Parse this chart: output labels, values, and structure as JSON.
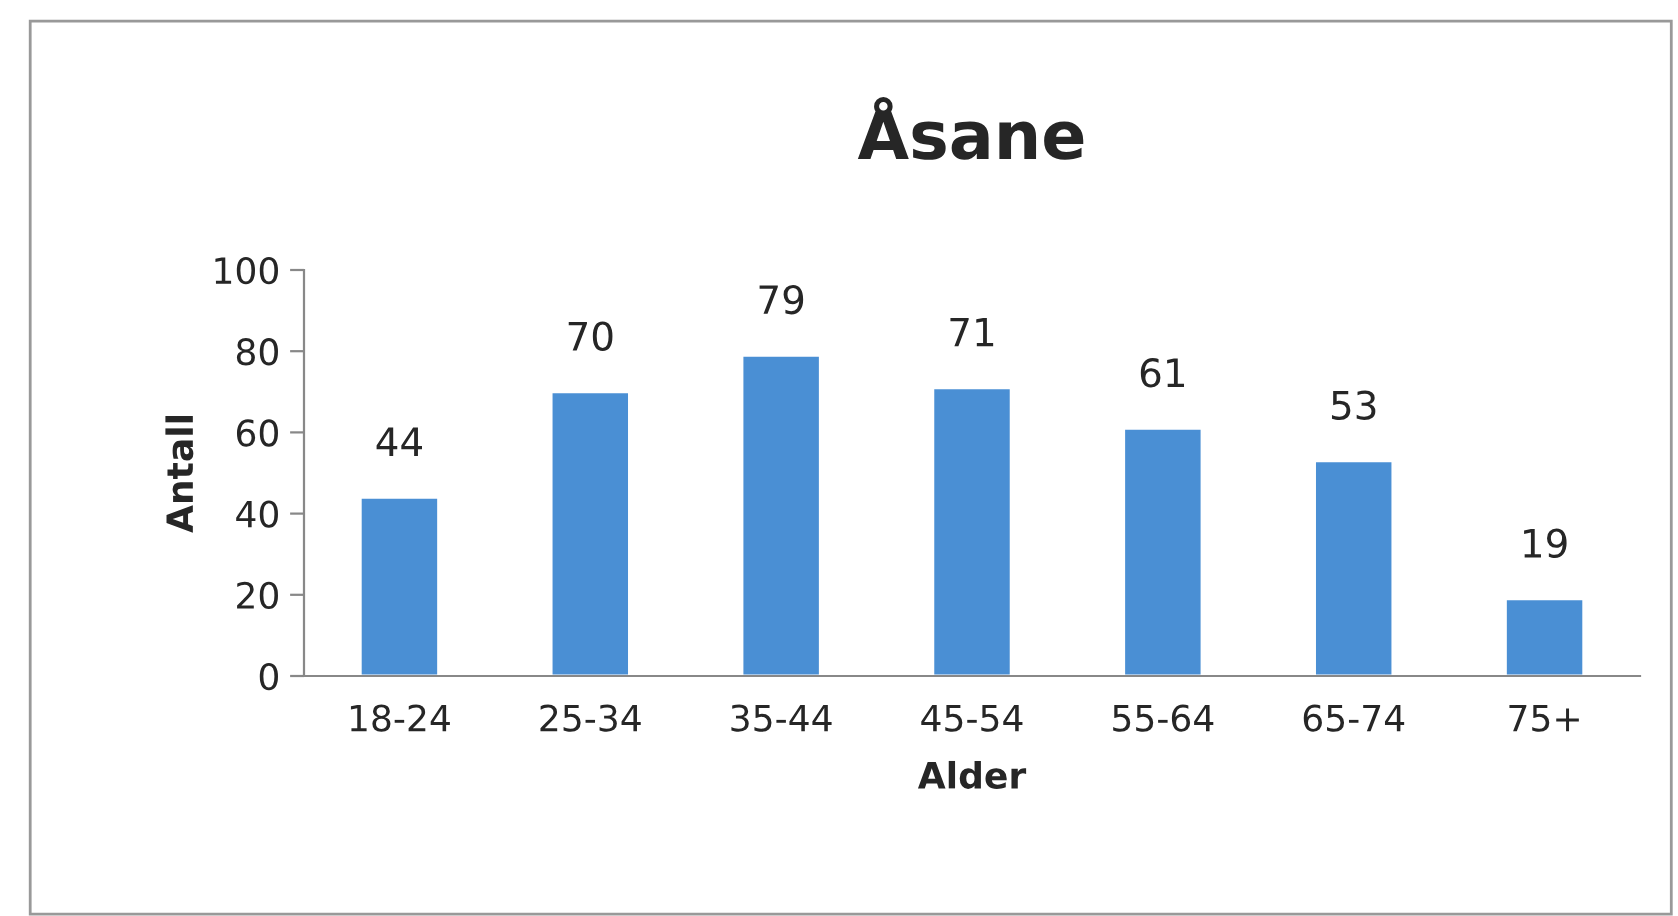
{
  "chart_data": {
    "type": "bar",
    "title": "Åsane",
    "xlabel": "Alder",
    "ylabel": "Antall",
    "categories": [
      "18-24",
      "25-34",
      "35-44",
      "45-54",
      "55-64",
      "65-74",
      "75+"
    ],
    "values": [
      44,
      70,
      79,
      71,
      61,
      53,
      19
    ],
    "color": "#4a8fd4",
    "ylim": [
      0,
      100
    ],
    "yticks": [
      0,
      20,
      40,
      60,
      80,
      100
    ],
    "grid": false,
    "data_labels": true,
    "legend": false
  }
}
